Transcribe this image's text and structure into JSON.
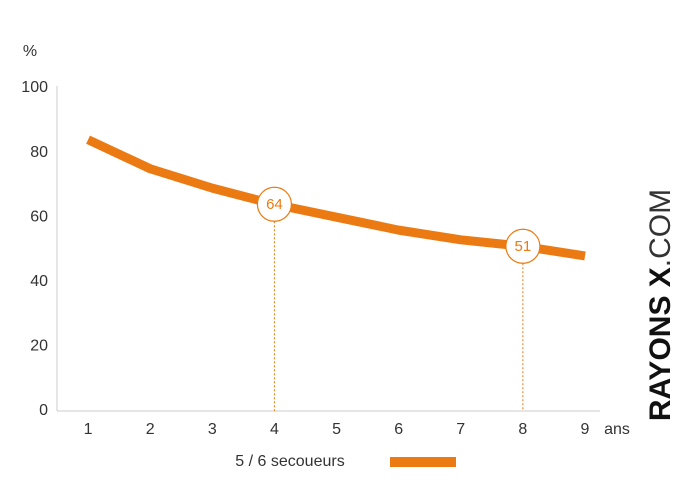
{
  "chart_data": {
    "type": "line",
    "y_label": "%",
    "x_label": "ans",
    "x": [
      1,
      2,
      3,
      4,
      5,
      6,
      7,
      8,
      9
    ],
    "series": [
      {
        "name": "5 / 6 secoueurs",
        "color": "#ec7a12",
        "values": [
          84,
          75,
          69,
          64,
          60,
          56,
          53,
          51,
          48
        ]
      }
    ],
    "xlim": [
      0.5,
      9
    ],
    "xticks": [
      1,
      2,
      3,
      4,
      5,
      6,
      7,
      8,
      9
    ],
    "ylim": [
      0,
      100
    ],
    "yticks": [
      0,
      20,
      40,
      60,
      80,
      100
    ],
    "grid": false,
    "marked_x": [
      4,
      8
    ],
    "watermark": {
      "brand": "RAYONS X",
      "suffix": ".COM"
    }
  }
}
